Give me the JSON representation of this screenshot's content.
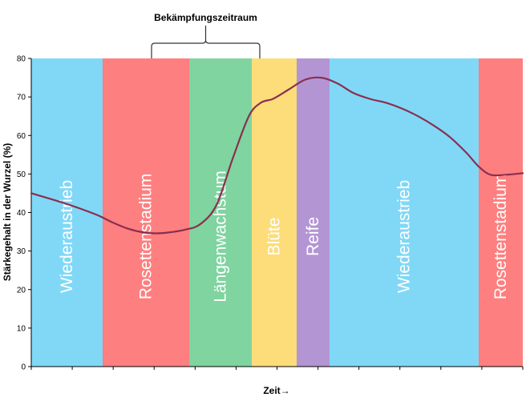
{
  "chart_data": {
    "type": "line",
    "title": "",
    "xlabel": "Zeit→",
    "ylabel": "Stärkegehalt in der Wurzel (%)",
    "ylim": [
      0,
      80
    ],
    "yticks": [
      "0",
      "10",
      "20",
      "30",
      "40",
      "50",
      "60",
      "70",
      "80"
    ],
    "x_axis_numbered": false,
    "annotation": {
      "text": "Bekämpfungszeitraum",
      "from_phase": "Rosettenstadium",
      "to_phase": "Längenwachstum"
    },
    "phases": [
      {
        "label": "Wiederaustrieb",
        "color": "#80d8f6"
      },
      {
        "label": "Rosettenstadium",
        "color": "#fe7f7f"
      },
      {
        "label": "Längenwachstum",
        "color": "#7fd4a0"
      },
      {
        "label": "Blüte",
        "color": "#fcdd7a"
      },
      {
        "label": "Reife",
        "color": "#b395d4"
      },
      {
        "label": "Wiederaustrieb",
        "color": "#80d8f6"
      },
      {
        "label": "Rosettenstadium",
        "color": "#fe7f7f"
      }
    ],
    "series": [
      {
        "name": "Stärkegehalt",
        "color": "#8a2f4f",
        "x": [
          0,
          4,
          8,
          10,
          12,
          14,
          15.5,
          17,
          19,
          21,
          23,
          25,
          27,
          28.5,
          30,
          32,
          34,
          36,
          38,
          40,
          42,
          44,
          46,
          48,
          50,
          52,
          54,
          55.5,
          57,
          59,
          61
        ],
        "values": [
          45,
          42.5,
          39.5,
          37.5,
          35.8,
          34.8,
          34.6,
          34.8,
          35.5,
          37,
          42,
          54,
          65,
          68.5,
          69.5,
          72,
          74.5,
          75,
          73.5,
          71,
          69.5,
          68.5,
          67,
          65,
          62.5,
          59.5,
          55.5,
          52,
          49.8,
          49.8,
          50.2
        ]
      }
    ]
  }
}
